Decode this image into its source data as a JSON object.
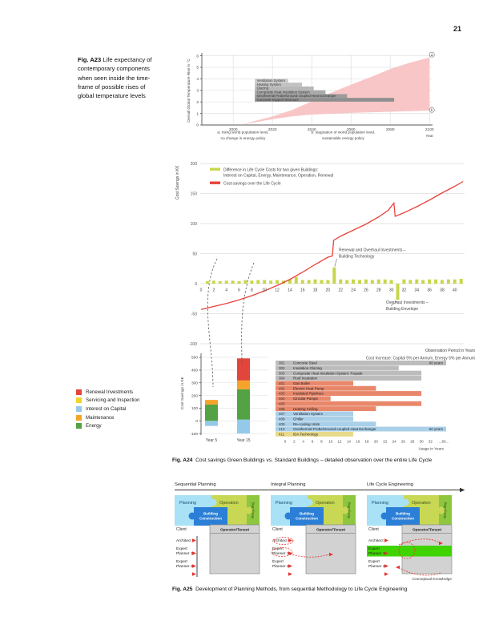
{
  "page": {
    "number": "21"
  },
  "figures": {
    "a23": {
      "label": "Fig. A23",
      "caption": "Life expectancy of contemporary components when seen inside the time-frame of possible rises of global temperature levels"
    },
    "a24": {
      "label": "Fig. A24",
      "caption": "Cost savings Green Buildings vs. Standard Buildings – detailed observation over the entire Life Cycle"
    },
    "a25": {
      "label": "Fig. A25",
      "caption": "Development of Planning Methods, from sequential Methodology to Life Cycle Engineering"
    }
  },
  "chart_data": [
    {
      "id": "a23_temperature",
      "type": "area",
      "ylabel": "Overall Global Temperature Rise in °C",
      "xlabel": "Year",
      "yticks": [
        0,
        1,
        2,
        3,
        4,
        5,
        6
      ],
      "xticks": [
        2000,
        2020,
        2040,
        2060,
        2080,
        2100
      ],
      "ylim": [
        0,
        6.5
      ],
      "xlim": [
        1984,
        2104
      ],
      "band_color": "#f8c6c7",
      "band_upper": [
        [
          2004,
          0
        ],
        [
          2010,
          0.3
        ],
        [
          2020,
          0.75
        ],
        [
          2030,
          1.3
        ],
        [
          2040,
          2.05
        ],
        [
          2050,
          2.8
        ],
        [
          2060,
          3.5
        ],
        [
          2070,
          4.15
        ],
        [
          2080,
          4.85
        ],
        [
          2090,
          5.4
        ],
        [
          2100,
          5.85
        ]
      ],
      "band_lower": [
        [
          2004,
          0
        ],
        [
          2010,
          0.2
        ],
        [
          2020,
          0.5
        ],
        [
          2030,
          0.75
        ],
        [
          2040,
          0.9
        ],
        [
          2060,
          1.05
        ],
        [
          2080,
          1.15
        ],
        [
          2100,
          1.25
        ]
      ],
      "markers": [
        {
          "label": "a",
          "year": 2100,
          "temp": 6.1
        },
        {
          "label": "b",
          "year": 2100,
          "temp": 1.3
        }
      ],
      "bars": {
        "start": 2011,
        "top_temp": 4.0,
        "row_height": 0.33,
        "rows": [
          {
            "label": "Ventilation System",
            "end": 2028,
            "color": "#cbcbcb"
          },
          {
            "label": "Heating System",
            "end": 2035,
            "color": "#c2c2c2"
          },
          {
            "label": "Glazing",
            "end": 2041,
            "color": "#b8b8b8"
          },
          {
            "label": "Composite Heat Insulation System",
            "end": 2047,
            "color": "#aaaaaa"
          },
          {
            "label": "Geothermal Probe/Ground-coupled Heat Exchanger",
            "end": 2058,
            "color": "#9c9c9c"
          },
          {
            "label": "Concrete Support Structure",
            "end": 2082,
            "color": "#8e8e8e"
          }
        ]
      },
      "scenario_notes": [
        {
          "anchor_year": 2005,
          "lines": [
            "a: rising world population level,",
            "no change in energy policy"
          ]
        },
        {
          "anchor_year": 2056,
          "lines": [
            "b: stagnation of world population level,",
            "sustainable energy policy"
          ]
        }
      ]
    },
    {
      "id": "a24_life_cycle",
      "type": "line+bar",
      "ylabel": "Cost Savings in K€",
      "yticks": [
        200,
        150,
        100,
        50,
        0,
        -50,
        -100
      ],
      "xticks": [
        0,
        2,
        4,
        6,
        8,
        10,
        12,
        14,
        16,
        18,
        20,
        22,
        24,
        26,
        28,
        30,
        32,
        34,
        36,
        38,
        40
      ],
      "line_color": "#e8423c",
      "bar_color": "#c8d64a",
      "legend": [
        {
          "color": "#c8d64a",
          "lines": [
            "Difference in Life Cycle Costs for two given Buildings:",
            "Interest on Capital, Energy, Maintenance, Operation, Renewal"
          ]
        },
        {
          "color": "#e8423c",
          "lines": [
            "Cost-savings over the Life Cycle"
          ]
        }
      ],
      "line": [
        [
          0,
          -43
        ],
        [
          2,
          -38
        ],
        [
          4,
          -33
        ],
        [
          6,
          -27
        ],
        [
          8,
          -20
        ],
        [
          10,
          -12
        ],
        [
          12,
          -3
        ],
        [
          14,
          7
        ],
        [
          16,
          19
        ],
        [
          18,
          32
        ],
        [
          20,
          44
        ],
        [
          20.7,
          46
        ],
        [
          20.9,
          72
        ],
        [
          22,
          79
        ],
        [
          24,
          89
        ],
        [
          26,
          99
        ],
        [
          28,
          111
        ],
        [
          29.5,
          122
        ],
        [
          30.4,
          134
        ],
        [
          30.6,
          112
        ],
        [
          32,
          118
        ],
        [
          34,
          128
        ],
        [
          36,
          139
        ],
        [
          38,
          151
        ],
        [
          40,
          162
        ],
        [
          41.3,
          170
        ]
      ],
      "bars": {
        "x": [
          1,
          2,
          3,
          4,
          5,
          6,
          7,
          8,
          9,
          10,
          11,
          12,
          13,
          14,
          15,
          16,
          17,
          18,
          19,
          20,
          21,
          22,
          23,
          24,
          25,
          26,
          27,
          28,
          29,
          30,
          31,
          32,
          33,
          34,
          35,
          36,
          37,
          38,
          39,
          40,
          41
        ],
        "v": [
          4,
          5,
          4,
          5,
          5,
          4,
          6,
          5,
          6,
          6,
          5,
          6,
          5,
          7,
          11,
          6,
          6,
          7,
          6,
          6,
          27,
          7,
          6,
          7,
          6,
          7,
          6,
          7,
          7,
          6,
          -27,
          7,
          6,
          7,
          6,
          7,
          7,
          6,
          7,
          7,
          8
        ]
      },
      "annotations": [
        {
          "x": 21,
          "v": 27,
          "lines": [
            "Renewal and Overhaul Investments –",
            "Building Technology"
          ]
        },
        {
          "x": 31,
          "v": -27,
          "lines": [
            "Overhaul Investments –",
            "Building Envelope"
          ]
        }
      ],
      "footnotes": [
        "Observation Period in Years",
        "Cost Increase: Capital 5% per Annum, Energy 5% per Annum"
      ]
    },
    {
      "id": "a24_breakdown",
      "type": "stacked-bar",
      "ylabel": "Cost Savings in K€",
      "yticks": [
        500,
        400,
        300,
        200,
        100,
        0,
        -100
      ],
      "categories": [
        "Year 5",
        "Year 15"
      ],
      "series_colors": {
        "Renewal Investments": "#e2453c",
        "Servicing and Inspection": "#f0d62c",
        "Interest on Capital": "#95c9e9",
        "Maintenance": "#f5a42b",
        "Energy": "#53a344"
      },
      "legend_order": [
        "Renewal Investments",
        "Servicing and Inspection",
        "Interest on Capital",
        "Maintenance",
        "Energy"
      ],
      "bars": [
        {
          "category": "Year 5",
          "segments": [
            {
              "name": "Interest on Capital",
              "from": -40,
              "to": 0
            },
            {
              "name": "Energy",
              "from": 0,
              "to": 128
            },
            {
              "name": "Maintenance",
              "from": 128,
              "to": 165
            }
          ]
        },
        {
          "category": "Year 15",
          "segments": [
            {
              "name": "Interest on Capital",
              "from": -100,
              "to": 10
            },
            {
              "name": "Energy",
              "from": 10,
              "to": 248
            },
            {
              "name": "Maintenance",
              "from": 248,
              "to": 318
            },
            {
              "name": "Renewal Investments",
              "from": 318,
              "to": 492
            }
          ]
        }
      ]
    },
    {
      "id": "a24_component_lifespans",
      "type": "gantt",
      "xlabel": "Usage in Years",
      "xticks": [
        0,
        2,
        4,
        6,
        8,
        10,
        12,
        14,
        16,
        18,
        20,
        22,
        24,
        26,
        28,
        30,
        32
      ],
      "xtick_break": "...60...",
      "rows": [
        {
          "code": "301",
          "label": "Concrete Steel",
          "years": 60,
          "color": "#bcbcbc",
          "note": "60 years"
        },
        {
          "code": "302",
          "label": "Insulation Glazing",
          "years": 25,
          "color": "#bcbcbc"
        },
        {
          "code": "303",
          "label": "Composite Heat Insulation System: Façade",
          "years": 30,
          "color": "#bcbcbc"
        },
        {
          "code": "304",
          "label": "Roof Insulation",
          "years": 30,
          "color": "#bcbcbc"
        },
        {
          "code": "401",
          "label": "Gas Boiler",
          "years": 15,
          "color": "#e8876a"
        },
        {
          "code": "402",
          "label": "Electric Heat Pump",
          "years": 20,
          "color": "#e8876a"
        },
        {
          "code": "403",
          "label": "Insulated Pipelines",
          "years": 30,
          "color": "#e8876a"
        },
        {
          "code": "404",
          "label": "Circular Pumps",
          "years": 10,
          "color": "#e8876a"
        },
        {
          "code": "405",
          "label": "",
          "years": 30,
          "color": "#e8876a"
        },
        {
          "code": "406",
          "label": "Heating Ceiling",
          "years": 20,
          "color": "#e8876a"
        },
        {
          "code": "407",
          "label": "Ventilation System",
          "years": 15,
          "color": "#aacfe8"
        },
        {
          "code": "408",
          "label": "Chiller",
          "years": 15,
          "color": "#aacfe8"
        },
        {
          "code": "409",
          "label": "Re-cooling Units",
          "years": 20,
          "color": "#aacfe8"
        },
        {
          "code": "410",
          "label": "Geothermal Probe/Ground-coupled Heat Exchanger",
          "years": 60,
          "color": "#aacfe8",
          "note": "60 years"
        },
        {
          "code": "411",
          "label": "IDA Technology",
          "years": 15,
          "color": "#e9da8b"
        }
      ]
    }
  ],
  "a25": {
    "panels": [
      {
        "title": "Sequential Planning",
        "variant": "sequential"
      },
      {
        "title": "Integral Planning",
        "variant": "integral"
      },
      {
        "title": "Life Cycle Engineering",
        "variant": "lce"
      }
    ],
    "puzzle": {
      "planning": "Planning",
      "construction_lines": [
        "Building",
        "Construction"
      ],
      "operation": "Operation",
      "recycling": "Recycling"
    },
    "roles": {
      "client": "Client",
      "operator": "Operator/Tenant"
    },
    "participants": [
      [
        "Architect"
      ],
      [
        "Expert",
        "Planner 1"
      ],
      [
        "Expert",
        "Planner 2"
      ]
    ],
    "note": "Conceptual Knowledge",
    "colors": {
      "planning": "#a9e1f6",
      "construction": "#2b7fd6",
      "operation": "#c8d855",
      "recycling": "#8dc63f",
      "panel_gray": "#d2d2d2",
      "highlight": "#3fd400",
      "arrow": "#e8302a"
    }
  }
}
